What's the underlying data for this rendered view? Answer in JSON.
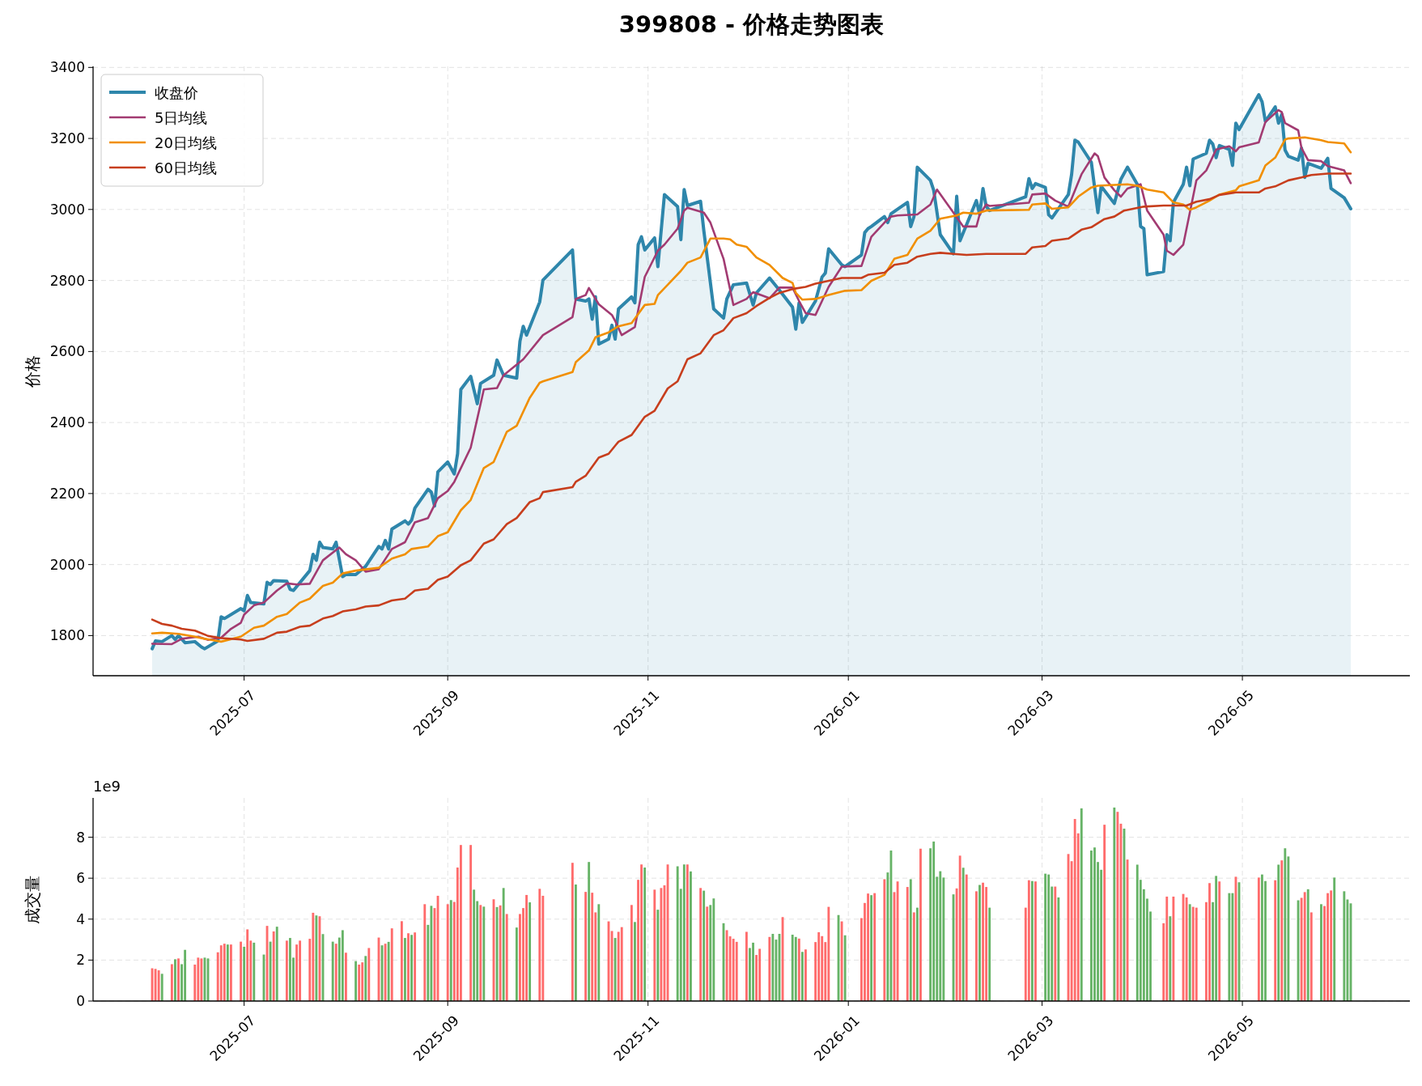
{
  "chart_data": [
    {
      "type": "line",
      "title": "399808 - 价格走势图表",
      "ylabel": "价格",
      "xlim": [
        "2025-05-16",
        "2026-06-21"
      ],
      "ylim": [
        1687,
        3403
      ],
      "xticks": [
        {
          "value": "2025-07-01",
          "label": "2025-07"
        },
        {
          "value": "2025-09-01",
          "label": "2025-09"
        },
        {
          "value": "2025-11-01",
          "label": "2025-11"
        },
        {
          "value": "2026-01-01",
          "label": "2026-01"
        },
        {
          "value": "2026-03-01",
          "label": "2026-03"
        },
        {
          "value": "2026-05-01",
          "label": "2026-05"
        }
      ],
      "yticks": [
        1800,
        2000,
        2200,
        2400,
        2600,
        2800,
        3000,
        3200,
        3400
      ],
      "grid": true,
      "legend": "top left",
      "series": [
        {
          "name": "收盘价",
          "type": "area",
          "color": "#2e86ab",
          "x": [
            "2025-06-03",
            "2025-06-04",
            "2025-06-06",
            "2025-06-09",
            "2025-06-10",
            "2025-06-11",
            "2025-06-13",
            "2025-06-16",
            "2025-06-18",
            "2025-06-19",
            "2025-06-23",
            "2025-06-24",
            "2025-06-25",
            "2025-06-30",
            "2025-07-01",
            "2025-07-02",
            "2025-07-03",
            "2025-07-07",
            "2025-07-08",
            "2025-07-09",
            "2025-07-10",
            "2025-07-14",
            "2025-07-15",
            "2025-07-16",
            "2025-07-21",
            "2025-07-22",
            "2025-07-23",
            "2025-07-24",
            "2025-07-25",
            "2025-07-28",
            "2025-07-29",
            "2025-07-31",
            "2025-08-01",
            "2025-08-04",
            "2025-08-07",
            "2025-08-11",
            "2025-08-12",
            "2025-08-13",
            "2025-08-14",
            "2025-08-15",
            "2025-08-19",
            "2025-08-20",
            "2025-08-21",
            "2025-08-22",
            "2025-08-26",
            "2025-08-27",
            "2025-08-28",
            "2025-08-29",
            "2025-09-01",
            "2025-09-03",
            "2025-09-04",
            "2025-09-05",
            "2025-09-08",
            "2025-09-10",
            "2025-09-11",
            "2025-09-15",
            "2025-09-16",
            "2025-09-18",
            "2025-09-22",
            "2025-09-23",
            "2025-09-24",
            "2025-09-25",
            "2025-09-29",
            "2025-09-30",
            "2025-10-09",
            "2025-10-10",
            "2025-10-13",
            "2025-10-14",
            "2025-10-15",
            "2025-10-16",
            "2025-10-17",
            "2025-10-20",
            "2025-10-21",
            "2025-10-22",
            "2025-10-23",
            "2025-10-27",
            "2025-10-28",
            "2025-10-29",
            "2025-10-30",
            "2025-10-31",
            "2025-11-03",
            "2025-11-04",
            "2025-11-06",
            "2025-11-10",
            "2025-11-11",
            "2025-11-12",
            "2025-11-13",
            "2025-11-17",
            "2025-11-18",
            "2025-11-21",
            "2025-11-24",
            "2025-11-25",
            "2025-11-27",
            "2025-12-01",
            "2025-12-03",
            "2025-12-04",
            "2025-12-08",
            "2025-12-11",
            "2025-12-15",
            "2025-12-16",
            "2025-12-17",
            "2025-12-18",
            "2025-12-22",
            "2025-12-24",
            "2025-12-25",
            "2025-12-26",
            "2025-12-30",
            "2025-12-31",
            "2026-01-05",
            "2026-01-06",
            "2026-01-07",
            "2026-01-08",
            "2026-01-12",
            "2026-01-13",
            "2026-01-14",
            "2026-01-19",
            "2026-01-20",
            "2026-01-21",
            "2026-01-22",
            "2026-01-26",
            "2026-01-27",
            "2026-01-29",
            "2026-02-02",
            "2026-02-03",
            "2026-02-04",
            "2026-02-09",
            "2026-02-10",
            "2026-02-11",
            "2026-02-12",
            "2026-02-13",
            "2026-02-24",
            "2026-02-25",
            "2026-02-26",
            "2026-02-27",
            "2026-03-02",
            "2026-03-03",
            "2026-03-04",
            "2026-03-09",
            "2026-03-10",
            "2026-03-11",
            "2026-03-12",
            "2026-03-16",
            "2026-03-18",
            "2026-03-19",
            "2026-03-23",
            "2026-03-25",
            "2026-03-27",
            "2026-03-30",
            "2026-03-31",
            "2026-04-01",
            "2026-04-02",
            "2026-04-07",
            "2026-04-08",
            "2026-04-09",
            "2026-04-10",
            "2026-04-13",
            "2026-04-14",
            "2026-04-15",
            "2026-04-16",
            "2026-04-20",
            "2026-04-21",
            "2026-04-22",
            "2026-04-23",
            "2026-04-24",
            "2026-04-27",
            "2026-04-28",
            "2026-04-29",
            "2026-04-30",
            "2026-05-06",
            "2026-05-07",
            "2026-05-08",
            "2026-05-11",
            "2026-05-12",
            "2026-05-13",
            "2026-05-14",
            "2026-05-15",
            "2026-05-18",
            "2026-05-19",
            "2026-05-20",
            "2026-05-21",
            "2026-05-25",
            "2026-05-27",
            "2026-05-28",
            "2026-06-01",
            "2026-06-03"
          ],
          "values": [
            1763,
            1785,
            1783,
            1800,
            1789,
            1800,
            1780,
            1783,
            1768,
            1763,
            1785,
            1853,
            1848,
            1876,
            1870,
            1913,
            1893,
            1889,
            1950,
            1944,
            1955,
            1953,
            1930,
            1927,
            1983,
            2029,
            2012,
            2063,
            2048,
            2044,
            2063,
            1966,
            1972,
            1972,
            1995,
            2051,
            2044,
            2068,
            2044,
            2100,
            2123,
            2114,
            2125,
            2159,
            2212,
            2204,
            2165,
            2261,
            2289,
            2255,
            2312,
            2493,
            2530,
            2453,
            2510,
            2533,
            2576,
            2533,
            2525,
            2629,
            2671,
            2646,
            2739,
            2801,
            2886,
            2748,
            2742,
            2748,
            2691,
            2754,
            2621,
            2635,
            2674,
            2635,
            2720,
            2754,
            2737,
            2901,
            2923,
            2886,
            2920,
            2839,
            3042,
            3008,
            2915,
            3056,
            3011,
            3023,
            2940,
            2720,
            2694,
            2748,
            2788,
            2793,
            2731,
            2765,
            2807,
            2773,
            2725,
            2663,
            2737,
            2682,
            2742,
            2810,
            2821,
            2889,
            2844,
            2839,
            2872,
            2935,
            2946,
            2952,
            2980,
            2963,
            2988,
            3020,
            2952,
            2980,
            3119,
            3082,
            3054,
            2929,
            2875,
            3037,
            2912,
            3025,
            2986,
            3059,
            3008,
            2997,
            3036,
            3087,
            3059,
            3073,
            3062,
            2985,
            2976,
            3042,
            3099,
            3195,
            3190,
            3133,
            2991,
            3065,
            3017,
            3085,
            3119,
            3071,
            2952,
            2946,
            2816,
            2825,
            2929,
            2912,
            3020,
            3071,
            3119,
            3067,
            3142,
            3158,
            3195,
            3184,
            3146,
            3180,
            3169,
            3124,
            3243,
            3225,
            3323,
            3303,
            3248,
            3289,
            3243,
            3268,
            3167,
            3150,
            3139,
            3173,
            3090,
            3130,
            3116,
            3144,
            3059,
            3033,
            3002
          ]
        },
        {
          "name": "5日均线",
          "color": "#a23b72",
          "x": [
            "2025-06-03",
            "2025-06-09",
            "2025-06-12",
            "2025-06-17",
            "2025-06-20",
            "2025-06-24",
            "2025-06-27",
            "2025-06-30",
            "2025-07-01",
            "2025-07-04",
            "2025-07-07",
            "2025-07-11",
            "2025-07-14",
            "2025-07-17",
            "2025-07-21",
            "2025-07-25",
            "2025-07-30",
            "2025-08-01",
            "2025-08-04",
            "2025-08-07",
            "2025-08-11",
            "2025-08-15",
            "2025-08-19",
            "2025-08-22",
            "2025-08-26",
            "2025-08-29",
            "2025-09-01",
            "2025-09-03",
            "2025-09-08",
            "2025-09-12",
            "2025-09-16",
            "2025-09-18",
            "2025-09-24",
            "2025-09-30",
            "2025-10-09",
            "2025-10-10",
            "2025-10-13",
            "2025-10-14",
            "2025-10-17",
            "2025-10-21",
            "2025-10-22",
            "2025-10-24",
            "2025-10-28",
            "2025-10-31",
            "2025-11-04",
            "2025-11-06",
            "2025-11-10",
            "2025-11-12",
            "2025-11-13",
            "2025-11-18",
            "2025-11-20",
            "2025-11-24",
            "2025-11-27",
            "2025-12-01",
            "2025-12-03",
            "2025-12-08",
            "2025-12-11",
            "2025-12-15",
            "2025-12-17",
            "2025-12-19",
            "2025-12-22",
            "2025-12-26",
            "2025-12-30",
            "2026-01-05",
            "2026-01-08",
            "2026-01-12",
            "2026-01-14",
            "2026-01-16",
            "2026-01-22",
            "2026-01-26",
            "2026-01-28",
            "2026-02-02",
            "2026-02-05",
            "2026-02-09",
            "2026-02-10",
            "2026-02-12",
            "2026-02-13",
            "2026-02-25",
            "2026-02-26",
            "2026-03-02",
            "2026-03-05",
            "2026-03-09",
            "2026-03-13",
            "2026-03-17",
            "2026-03-18",
            "2026-03-20",
            "2026-03-23",
            "2026-03-25",
            "2026-03-27",
            "2026-03-31",
            "2026-04-02",
            "2026-04-07",
            "2026-04-08",
            "2026-04-10",
            "2026-04-13",
            "2026-04-17",
            "2026-04-20",
            "2026-04-23",
            "2026-04-27",
            "2026-04-29",
            "2026-04-30",
            "2026-05-06",
            "2026-05-08",
            "2026-05-12",
            "2026-05-13",
            "2026-05-14",
            "2026-05-18",
            "2026-05-19",
            "2026-05-21",
            "2026-05-25",
            "2026-05-27",
            "2026-06-01",
            "2026-06-03"
          ],
          "values": [
            1777,
            1776,
            1791,
            1797,
            1788,
            1794,
            1819,
            1836,
            1859,
            1885,
            1893,
            1927,
            1947,
            1944,
            1946,
            2012,
            2048,
            2029,
            2012,
            1980,
            1987,
            2044,
            2063,
            2119,
            2131,
            2187,
            2207,
            2233,
            2329,
            2493,
            2497,
            2533,
            2578,
            2646,
            2697,
            2748,
            2759,
            2779,
            2733,
            2703,
            2686,
            2646,
            2669,
            2810,
            2884,
            2901,
            2946,
            2997,
            3005,
            2991,
            2963,
            2861,
            2731,
            2748,
            2767,
            2750,
            2780,
            2780,
            2742,
            2708,
            2703,
            2782,
            2839,
            2841,
            2923,
            2963,
            2980,
            2983,
            2986,
            3014,
            3056,
            2991,
            2952,
            2952,
            2986,
            3014,
            3010,
            3019,
            3042,
            3045,
            3025,
            3008,
            3099,
            3158,
            3150,
            3090,
            3054,
            3036,
            3059,
            3071,
            2997,
            2929,
            2884,
            2872,
            2901,
            3082,
            3110,
            3169,
            3178,
            3164,
            3175,
            3189,
            3246,
            3280,
            3274,
            3243,
            3223,
            3173,
            3139,
            3136,
            3122,
            3110,
            3074
          ]
        },
        {
          "name": "20日均线",
          "color": "#f18f01",
          "x": [
            "2025-06-03",
            "2025-06-06",
            "2025-06-11",
            "2025-06-16",
            "2025-06-19",
            "2025-06-24",
            "2025-06-30",
            "2025-07-04",
            "2025-07-07",
            "2025-07-11",
            "2025-07-14",
            "2025-07-18",
            "2025-07-21",
            "2025-07-25",
            "2025-07-28",
            "2025-07-31",
            "2025-08-04",
            "2025-08-11",
            "2025-08-15",
            "2025-08-19",
            "2025-08-21",
            "2025-08-26",
            "2025-08-29",
            "2025-09-01",
            "2025-09-05",
            "2025-09-08",
            "2025-09-12",
            "2025-09-15",
            "2025-09-19",
            "2025-09-22",
            "2025-09-26",
            "2025-09-29",
            "2025-09-30",
            "2025-10-09",
            "2025-10-10",
            "2025-10-14",
            "2025-10-16",
            "2025-10-20",
            "2025-10-23",
            "2025-10-27",
            "2025-10-31",
            "2025-11-03",
            "2025-11-04",
            "2025-11-07",
            "2025-11-11",
            "2025-11-13",
            "2025-11-17",
            "2025-11-20",
            "2025-11-24",
            "2025-11-26",
            "2025-11-28",
            "2025-12-01",
            "2025-12-04",
            "2025-12-08",
            "2025-12-12",
            "2025-12-15",
            "2025-12-16",
            "2025-12-18",
            "2025-12-22",
            "2025-12-26",
            "2025-12-31",
            "2026-01-05",
            "2026-01-08",
            "2026-01-12",
            "2026-01-15",
            "2026-01-19",
            "2026-01-22",
            "2026-01-26",
            "2026-01-29",
            "2026-02-03",
            "2026-02-05",
            "2026-02-09",
            "2026-02-12",
            "2026-02-25",
            "2026-02-26",
            "2026-03-02",
            "2026-03-04",
            "2026-03-09",
            "2026-03-12",
            "2026-03-16",
            "2026-03-18",
            "2026-03-27",
            "2026-03-30",
            "2026-04-02",
            "2026-04-07",
            "2026-04-10",
            "2026-04-13",
            "2026-04-15",
            "2026-04-17",
            "2026-04-21",
            "2026-04-24",
            "2026-04-29",
            "2026-04-30",
            "2026-05-06",
            "2026-05-08",
            "2026-05-11",
            "2026-05-14",
            "2026-05-15",
            "2026-05-20",
            "2026-05-25",
            "2026-05-27",
            "2026-06-01",
            "2026-06-03"
          ],
          "values": [
            1806,
            1808,
            1805,
            1797,
            1791,
            1783,
            1797,
            1822,
            1828,
            1853,
            1861,
            1893,
            1904,
            1940,
            1949,
            1975,
            1983,
            1991,
            2017,
            2029,
            2044,
            2051,
            2080,
            2091,
            2153,
            2182,
            2272,
            2289,
            2374,
            2391,
            2470,
            2512,
            2516,
            2542,
            2570,
            2603,
            2640,
            2654,
            2671,
            2680,
            2731,
            2734,
            2759,
            2788,
            2827,
            2850,
            2865,
            2918,
            2918,
            2916,
            2901,
            2895,
            2865,
            2844,
            2807,
            2793,
            2765,
            2746,
            2748,
            2759,
            2771,
            2773,
            2799,
            2816,
            2861,
            2872,
            2918,
            2940,
            2974,
            2983,
            2991,
            2988,
            2997,
            2999,
            3014,
            3017,
            3002,
            3006,
            3036,
            3062,
            3067,
            3071,
            3067,
            3056,
            3048,
            3020,
            3014,
            2999,
            3006,
            3025,
            3042,
            3054,
            3065,
            3082,
            3124,
            3146,
            3197,
            3200,
            3203,
            3195,
            3190,
            3186,
            3161
          ]
        },
        {
          "name": "60日均线",
          "color": "#c73e1d",
          "x": [
            "2025-06-03",
            "2025-06-06",
            "2025-06-09",
            "2025-06-12",
            "2025-06-16",
            "2025-06-20",
            "2025-06-24",
            "2025-06-30",
            "2025-07-02",
            "2025-07-07",
            "2025-07-11",
            "2025-07-14",
            "2025-07-18",
            "2025-07-21",
            "2025-07-25",
            "2025-07-28",
            "2025-07-31",
            "2025-08-04",
            "2025-08-07",
            "2025-08-11",
            "2025-08-15",
            "2025-08-19",
            "2025-08-22",
            "2025-08-26",
            "2025-08-29",
            "2025-09-01",
            "2025-09-05",
            "2025-09-08",
            "2025-09-12",
            "2025-09-15",
            "2025-09-19",
            "2025-09-22",
            "2025-09-26",
            "2025-09-29",
            "2025-09-30",
            "2025-10-09",
            "2025-10-10",
            "2025-10-13",
            "2025-10-17",
            "2025-10-20",
            "2025-10-23",
            "2025-10-27",
            "2025-10-31",
            "2025-11-03",
            "2025-11-07",
            "2025-11-10",
            "2025-11-13",
            "2025-11-17",
            "2025-11-21",
            "2025-11-24",
            "2025-11-27",
            "2025-12-01",
            "2025-12-04",
            "2025-12-08",
            "2025-12-11",
            "2025-12-15",
            "2025-12-19",
            "2025-12-22",
            "2025-12-26",
            "2025-12-30",
            "2026-01-05",
            "2026-01-07",
            "2026-01-12",
            "2026-01-15",
            "2026-01-19",
            "2026-01-22",
            "2026-01-26",
            "2026-01-29",
            "2026-02-02",
            "2026-02-06",
            "2026-02-12",
            "2026-02-24",
            "2026-02-26",
            "2026-03-02",
            "2026-03-04",
            "2026-03-09",
            "2026-03-13",
            "2026-03-16",
            "2026-03-20",
            "2026-03-23",
            "2026-03-26",
            "2026-04-01",
            "2026-04-07",
            "2026-04-14",
            "2026-04-17",
            "2026-04-21",
            "2026-04-24",
            "2026-04-29",
            "2026-05-06",
            "2026-05-08",
            "2026-05-11",
            "2026-05-15",
            "2026-05-19",
            "2026-05-22",
            "2026-05-27",
            "2026-06-03"
          ],
          "values": [
            1845,
            1833,
            1828,
            1819,
            1814,
            1799,
            1793,
            1789,
            1785,
            1791,
            1808,
            1811,
            1825,
            1828,
            1848,
            1855,
            1868,
            1874,
            1882,
            1885,
            1899,
            1904,
            1927,
            1932,
            1957,
            1966,
            1998,
            2012,
            2059,
            2071,
            2114,
            2131,
            2176,
            2187,
            2204,
            2218,
            2233,
            2250,
            2301,
            2312,
            2346,
            2365,
            2416,
            2433,
            2496,
            2516,
            2578,
            2595,
            2646,
            2660,
            2694,
            2708,
            2728,
            2751,
            2765,
            2776,
            2782,
            2791,
            2799,
            2807,
            2807,
            2816,
            2822,
            2844,
            2850,
            2867,
            2875,
            2878,
            2875,
            2872,
            2875,
            2875,
            2893,
            2897,
            2912,
            2918,
            2943,
            2950,
            2973,
            2980,
            2997,
            3008,
            3011,
            3011,
            3022,
            3029,
            3041,
            3048,
            3048,
            3059,
            3065,
            3082,
            3090,
            3097,
            3101,
            3101
          ]
        }
      ]
    },
    {
      "type": "bar",
      "ylabel": "成交量",
      "annotations": [
        "1e9"
      ],
      "xlim": [
        "2025-05-16",
        "2026-06-21"
      ],
      "ylim": [
        0,
        9.92
      ],
      "xticks": [
        {
          "value": "2025-07-01",
          "label": "2025-07"
        },
        {
          "value": "2025-09-01",
          "label": "2025-09"
        },
        {
          "value": "2025-11-01",
          "label": "2025-11"
        },
        {
          "value": "2026-01-01",
          "label": "2026-01"
        },
        {
          "value": "2026-03-01",
          "label": "2026-03"
        },
        {
          "value": "2026-05-01",
          "label": "2026-05"
        }
      ],
      "yticks": [
        0,
        2,
        4,
        6,
        8
      ],
      "grid": true,
      "series": [
        {
          "color": "#ff6b6b",
          "x": [
            "2025-06-03",
            "2025-06-04",
            "2025-06-05",
            "2025-06-09",
            "2025-06-11",
            "2025-06-16",
            "2025-06-17",
            "2025-06-18",
            "2025-06-23",
            "2025-06-24",
            "2025-06-25",
            "2025-06-27",
            "2025-06-30",
            "2025-07-02",
            "2025-07-03",
            "2025-07-08",
            "2025-07-10",
            "2025-07-14",
            "2025-07-17",
            "2025-07-18",
            "2025-07-21",
            "2025-07-22",
            "2025-07-24",
            "2025-07-29",
            "2025-08-01",
            "2025-08-05",
            "2025-08-06",
            "2025-08-08",
            "2025-08-11",
            "2025-08-13",
            "2025-08-15",
            "2025-08-18",
            "2025-08-20",
            "2025-08-22",
            "2025-08-25",
            "2025-08-28",
            "2025-08-29",
            "2025-09-01",
            "2025-09-03",
            "2025-09-04",
            "2025-09-05",
            "2025-09-08",
            "2025-09-11",
            "2025-09-15",
            "2025-09-17",
            "2025-09-19",
            "2025-09-23",
            "2025-09-24",
            "2025-09-25",
            "2025-09-29",
            "2025-09-30",
            "2025-10-09",
            "2025-10-13",
            "2025-10-15",
            "2025-10-16",
            "2025-10-20",
            "2025-10-21",
            "2025-10-23",
            "2025-10-24",
            "2025-10-27",
            "2025-10-29",
            "2025-10-30",
            "2025-11-03",
            "2025-11-05",
            "2025-11-06",
            "2025-11-07",
            "2025-11-13",
            "2025-11-17",
            "2025-11-19",
            "2025-11-25",
            "2025-11-26",
            "2025-11-27",
            "2025-11-28",
            "2025-12-01",
            "2025-12-04",
            "2025-12-05",
            "2025-12-08",
            "2025-12-12",
            "2025-12-17",
            "2025-12-19",
            "2025-12-22",
            "2025-12-23",
            "2025-12-24",
            "2025-12-25",
            "2025-12-26",
            "2025-12-30",
            "2026-01-05",
            "2026-01-06",
            "2026-01-07",
            "2026-01-09",
            "2026-01-12",
            "2026-01-15",
            "2026-01-16",
            "2026-01-19",
            "2026-01-21",
            "2026-01-23",
            "2026-02-03",
            "2026-02-04",
            "2026-02-06",
            "2026-02-09",
            "2026-02-11",
            "2026-02-12",
            "2026-02-24",
            "2026-02-25",
            "2026-02-27",
            "2026-03-05",
            "2026-03-09",
            "2026-03-10",
            "2026-03-11",
            "2026-03-12",
            "2026-03-20",
            "2026-03-24",
            "2026-03-25",
            "2026-03-27",
            "2026-04-07",
            "2026-04-08",
            "2026-04-10",
            "2026-04-13",
            "2026-04-14",
            "2026-04-16",
            "2026-04-17",
            "2026-04-20",
            "2026-04-21",
            "2026-04-24",
            "2026-04-29",
            "2026-05-06",
            "2026-05-11",
            "2026-05-13",
            "2026-05-19",
            "2026-05-20",
            "2026-05-22",
            "2026-05-26",
            "2026-05-27",
            "2026-05-28"
          ],
          "values": [
            1.6,
            1.57,
            1.5,
            1.8,
            2.08,
            1.78,
            2.12,
            2.08,
            2.38,
            2.72,
            2.8,
            2.76,
            2.9,
            3.5,
            2.95,
            3.67,
            3.4,
            2.95,
            2.76,
            2.95,
            3.04,
            4.31,
            4.14,
            2.8,
            2.36,
            1.78,
            1.89,
            2.59,
            3.1,
            2.8,
            3.55,
            3.9,
            3.31,
            3.35,
            4.73,
            4.54,
            5.14,
            4.73,
            4.84,
            6.52,
            7.62,
            7.62,
            4.69,
            4.97,
            4.67,
            4.25,
            4.25,
            4.54,
            5.18,
            5.48,
            5.14,
            6.75,
            5.33,
            5.29,
            4.33,
            3.89,
            3.42,
            3.38,
            3.61,
            4.69,
            5.92,
            6.67,
            5.44,
            5.52,
            5.65,
            6.67,
            6.67,
            5.52,
            4.61,
            3.46,
            3.16,
            3.04,
            2.89,
            3.38,
            2.25,
            2.55,
            3.13,
            4.1,
            3.05,
            2.52,
            2.88,
            3.36,
            3.17,
            2.88,
            4.6,
            3.89,
            4.05,
            4.79,
            5.25,
            5.27,
            5.95,
            5.32,
            5.84,
            5.57,
            4.33,
            7.44,
            5.5,
            7.1,
            6.18,
            5.36,
            5.78,
            5.57,
            4.56,
            5.9,
            5.84,
            5.59,
            7.18,
            6.83,
            8.89,
            8.19,
            8.61,
            9.24,
            8.66,
            6.91,
            3.8,
            5.1,
            5.1,
            5.23,
            5.06,
            4.6,
            4.56,
            4.83,
            5.76,
            5.84,
            6.07,
            6.03,
            5.9,
            6.87,
            5.04,
            5.32,
            4.33,
            4.64,
            5.27,
            5.4
          ]
        },
        {
          "color": "#66b366",
          "x": [
            "2025-06-06",
            "2025-06-10",
            "2025-06-12",
            "2025-06-13",
            "2025-06-19",
            "2025-06-20",
            "2025-06-26",
            "2025-07-01",
            "2025-07-04",
            "2025-07-07",
            "2025-07-09",
            "2025-07-11",
            "2025-07-15",
            "2025-07-16",
            "2025-07-23",
            "2025-07-25",
            "2025-07-28",
            "2025-07-30",
            "2025-07-31",
            "2025-08-04",
            "2025-08-07",
            "2025-08-12",
            "2025-08-14",
            "2025-08-19",
            "2025-08-21",
            "2025-08-26",
            "2025-08-27",
            "2025-09-02",
            "2025-09-09",
            "2025-09-10",
            "2025-09-12",
            "2025-09-16",
            "2025-09-18",
            "2025-09-22",
            "2025-09-26",
            "2025-10-10",
            "2025-10-14",
            "2025-10-17",
            "2025-10-22",
            "2025-10-28",
            "2025-10-31",
            "2025-11-04",
            "2025-11-10",
            "2025-11-11",
            "2025-11-12",
            "2025-11-14",
            "2025-11-18",
            "2025-11-20",
            "2025-11-21",
            "2025-11-24",
            "2025-12-02",
            "2025-12-03",
            "2025-12-09",
            "2025-12-10",
            "2025-12-11",
            "2025-12-15",
            "2025-12-16",
            "2025-12-18",
            "2025-12-29",
            "2025-12-31",
            "2026-01-08",
            "2026-01-13",
            "2026-01-14",
            "2026-01-20",
            "2026-01-22",
            "2026-01-26",
            "2026-01-27",
            "2026-01-28",
            "2026-01-29",
            "2026-01-30",
            "2026-02-02",
            "2026-02-05",
            "2026-02-10",
            "2026-02-13",
            "2026-02-26",
            "2026-03-02",
            "2026-03-03",
            "2026-03-04",
            "2026-03-06",
            "2026-03-13",
            "2026-03-16",
            "2026-03-17",
            "2026-03-18",
            "2026-03-19",
            "2026-03-23",
            "2026-03-26",
            "2026-03-30",
            "2026-03-31",
            "2026-04-01",
            "2026-04-02",
            "2026-04-03",
            "2026-04-09",
            "2026-04-15",
            "2026-04-22",
            "2026-04-23",
            "2026-04-27",
            "2026-04-28",
            "2026-04-30",
            "2026-05-07",
            "2026-05-08",
            "2026-05-12",
            "2026-05-14",
            "2026-05-15",
            "2026-05-18",
            "2026-05-21",
            "2026-05-25",
            "2026-05-29",
            "2026-06-01",
            "2026-06-02",
            "2026-06-03"
          ],
          "values": [
            1.33,
            2.04,
            1.8,
            2.5,
            2.12,
            2.08,
            2.76,
            2.65,
            2.85,
            2.27,
            2.9,
            3.63,
            3.08,
            2.12,
            4.18,
            3.27,
            2.9,
            3.1,
            3.46,
            1.95,
            2.2,
            2.72,
            2.89,
            3.08,
            3.23,
            3.72,
            4.65,
            4.93,
            5.44,
            4.88,
            4.61,
            4.59,
            5.52,
            3.59,
            4.82,
            5.69,
            6.79,
            4.73,
            3.08,
            3.86,
            6.52,
            4.46,
            6.58,
            5.48,
            6.67,
            6.33,
            5.39,
            4.69,
            5.01,
            3.8,
            2.59,
            2.85,
            3.28,
            3.0,
            3.28,
            3.24,
            3.13,
            2.4,
            4.2,
            3.21,
            5.17,
            6.28,
            7.35,
            5.95,
            4.56,
            7.46,
            7.79,
            6.07,
            6.34,
            6.03,
            5.21,
            6.51,
            5.67,
            4.56,
            5.86,
            6.22,
            6.18,
            5.59,
            5.06,
            9.41,
            7.35,
            7.5,
            6.79,
            6.41,
            9.45,
            8.42,
            6.66,
            5.92,
            5.46,
            5.0,
            4.37,
            4.14,
            4.73,
            4.83,
            6.11,
            5.27,
            5.27,
            5.8,
            6.18,
            5.86,
            6.66,
            7.46,
            7.06,
            4.92,
            5.46,
            4.73,
            6.03,
            5.36,
            4.96,
            4.77
          ]
        }
      ]
    }
  ]
}
